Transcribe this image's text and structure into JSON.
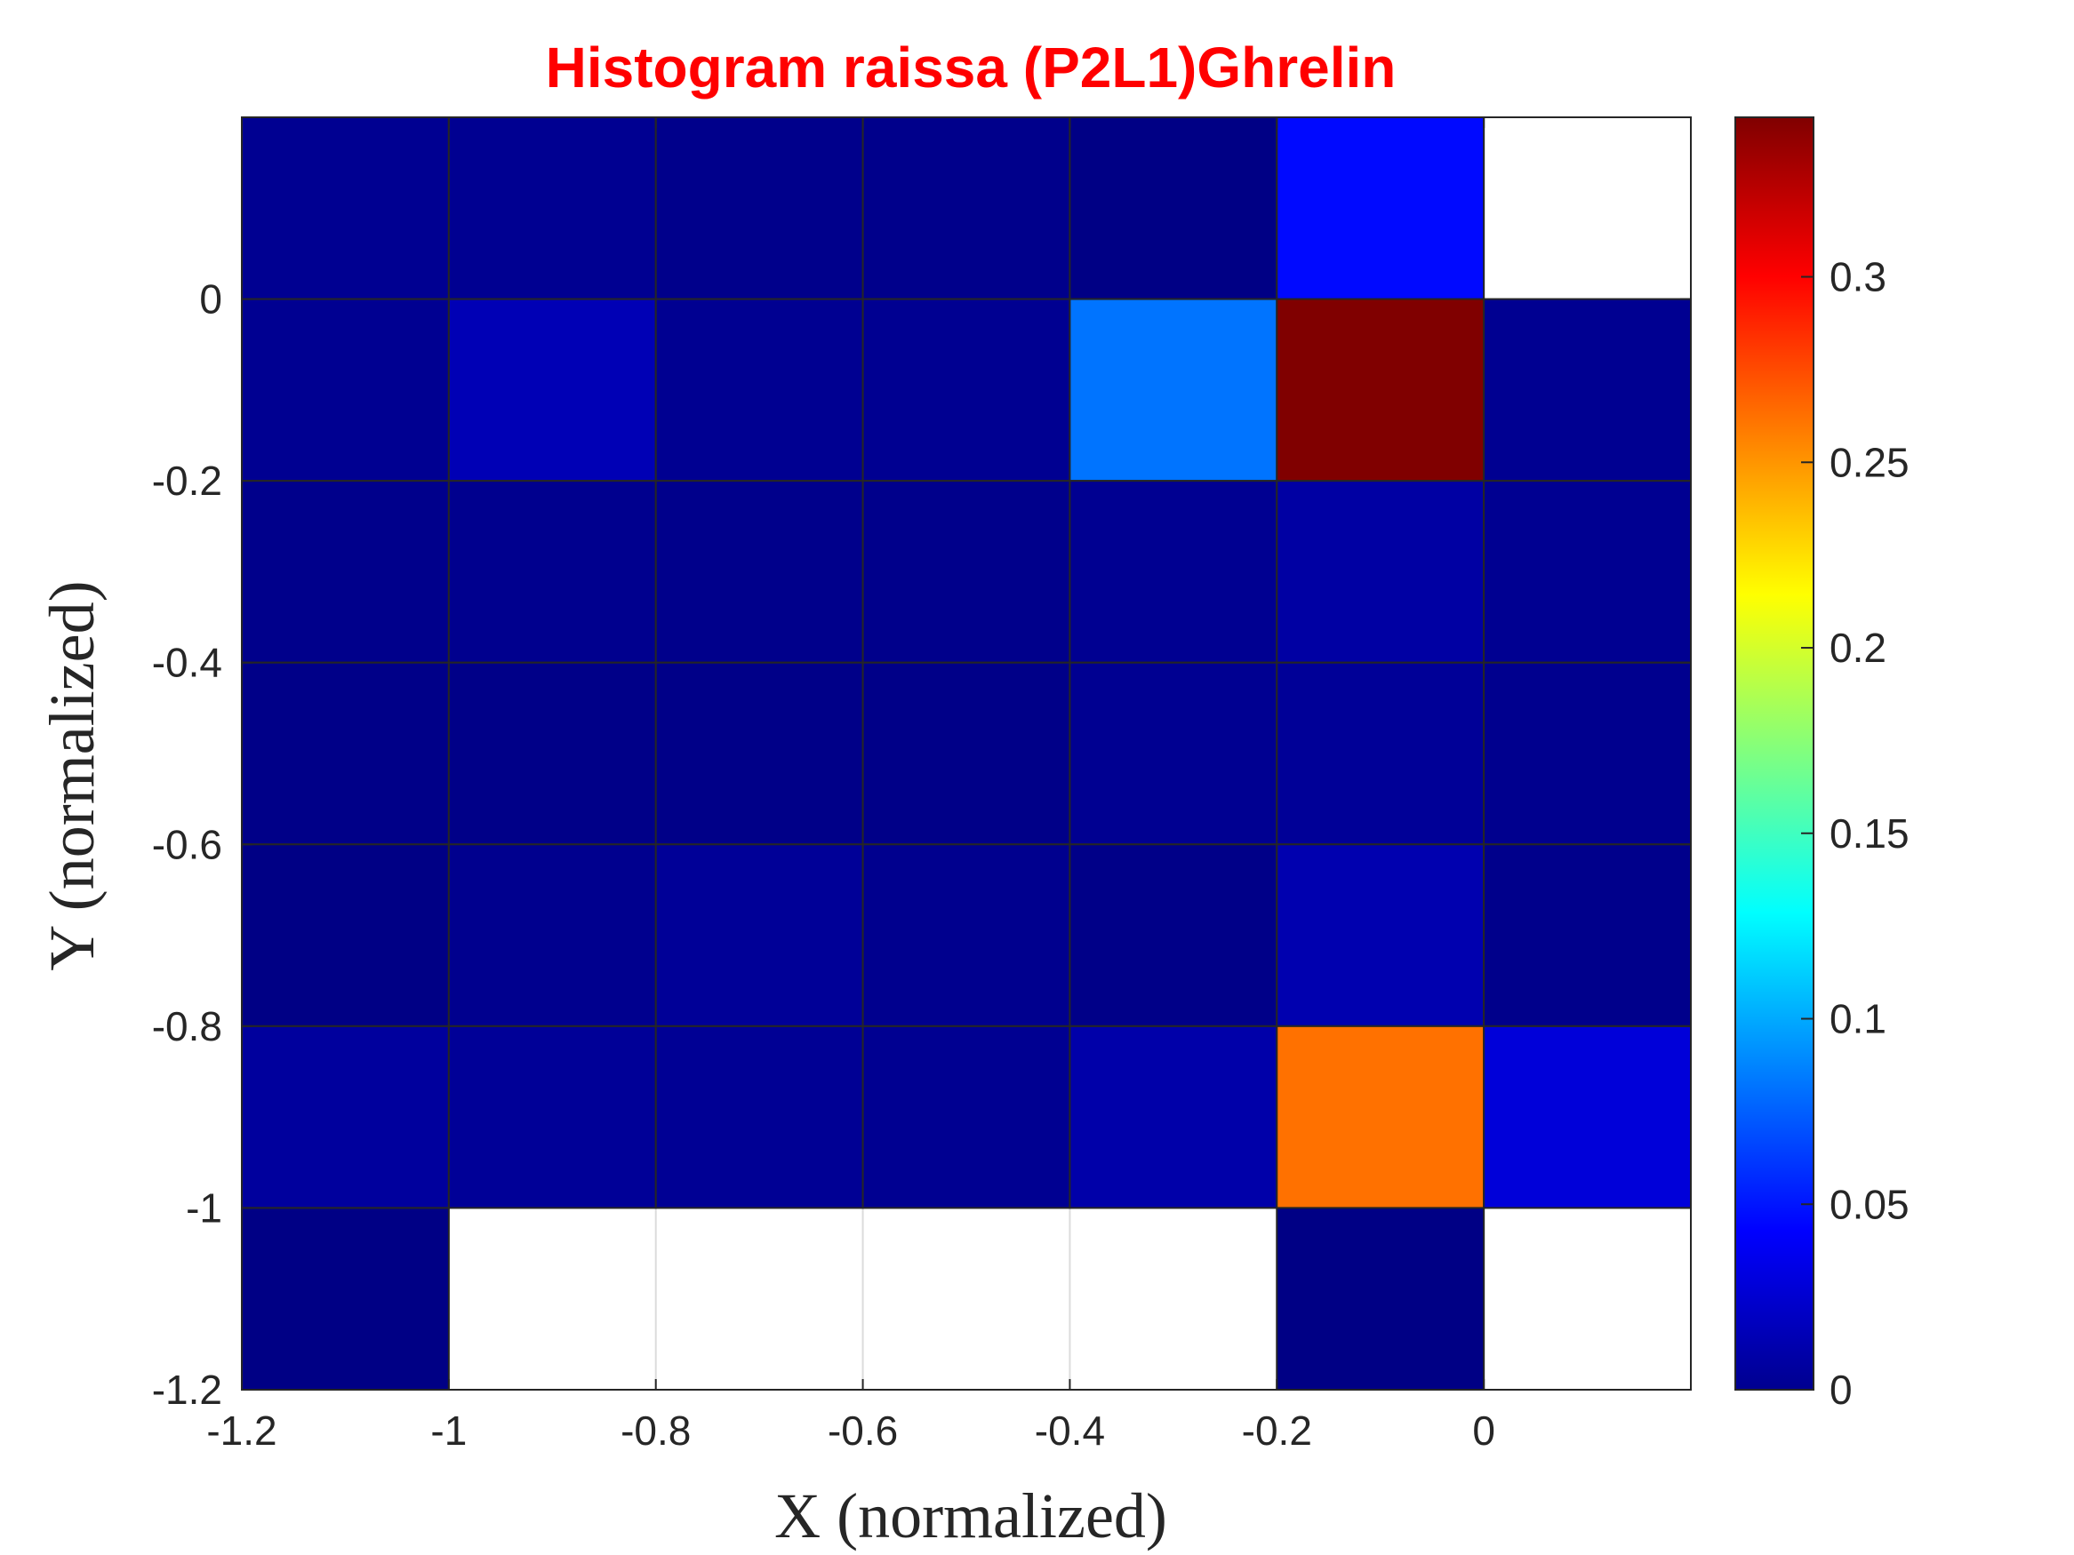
{
  "chart_data": {
    "type": "heatmap",
    "title": "Histogram raissa (P2L1)Ghrelin",
    "xlabel": "X (normalized)",
    "ylabel": "Y (normalized)",
    "x_edges": [
      -1.2,
      -1.0,
      -0.8,
      -0.6,
      -0.4,
      -0.2,
      0.0,
      0.2
    ],
    "y_edges": [
      -1.2,
      -1.0,
      -0.8,
      -0.6,
      -0.4,
      -0.2,
      0.0,
      0.2
    ],
    "xlim": [
      -1.2,
      0.2
    ],
    "ylim": [
      -1.2,
      0.2
    ],
    "xticks": [
      -1.2,
      -1.0,
      -0.8,
      -0.6,
      -0.4,
      -0.2,
      0.0
    ],
    "xtick_labels": [
      "-1.2",
      "-1",
      "-0.8",
      "-0.6",
      "-0.4",
      "-0.2",
      "0"
    ],
    "yticks": [
      -1.2,
      -1.0,
      -0.8,
      -0.6,
      -0.4,
      -0.2,
      0.0
    ],
    "ytick_labels": [
      "-1.2",
      "-1",
      "-0.8",
      "-0.6",
      "-0.4",
      "-0.2",
      "0"
    ],
    "colormap": "jet",
    "clim": [
      0,
      0.343
    ],
    "colorbar_ticks": [
      0,
      0.05,
      0.1,
      0.15,
      0.2,
      0.25,
      0.3
    ],
    "colorbar_labels": [
      "0",
      "0.05",
      "0.1",
      "0.15",
      "0.2",
      "0.25",
      "0.3"
    ],
    "rows_top_to_bottom_y_ranges": [
      "0 to 0.2",
      "-0.2 to 0",
      "-0.4 to -0.2",
      "-0.6 to -0.4",
      "-0.8 to -0.6",
      "-1 to -0.8",
      "-1.2 to -1"
    ],
    "values": [
      [
        0.006,
        0.006,
        0.004,
        0.004,
        0.002,
        0.046,
        null
      ],
      [
        0.006,
        0.018,
        0.006,
        0.006,
        0.082,
        0.343,
        0.006
      ],
      [
        0.004,
        0.005,
        0.004,
        0.004,
        0.006,
        0.012,
        0.006
      ],
      [
        0.003,
        0.003,
        0.003,
        0.003,
        0.006,
        0.008,
        0.005
      ],
      [
        0.002,
        0.005,
        0.008,
        0.005,
        0.003,
        0.016,
        0.004
      ],
      [
        0.01,
        0.008,
        0.007,
        0.006,
        0.014,
        0.262,
        0.03
      ],
      [
        0.002,
        null,
        null,
        null,
        null,
        0.002,
        null
      ]
    ],
    "grid": true,
    "colors": {
      "title": "#ff0000",
      "axes": "#262626",
      "empty_cell": "#ffffff",
      "cell_edge": "#262626"
    }
  }
}
